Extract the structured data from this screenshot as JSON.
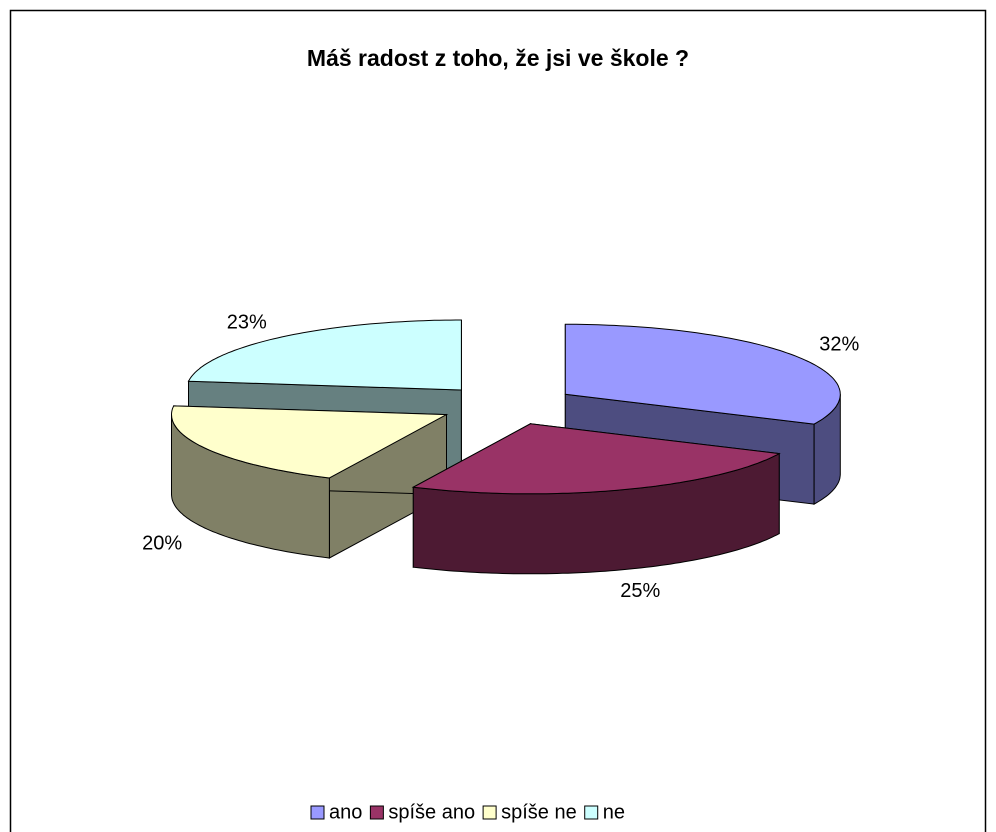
{
  "chart_data": {
    "type": "pie3d",
    "title": "Máš radost z toho, že jsi ve škole ?",
    "categories": [
      "ano",
      "spíše ano",
      "spíše ne",
      "ne"
    ],
    "values": [
      32,
      25,
      20,
      23
    ],
    "value_labels": [
      "32%",
      "25%",
      "20%",
      "23%"
    ],
    "colors": [
      "#9999ff",
      "#993366",
      "#ffffcc",
      "#ccffff"
    ],
    "legend": "bottom"
  }
}
